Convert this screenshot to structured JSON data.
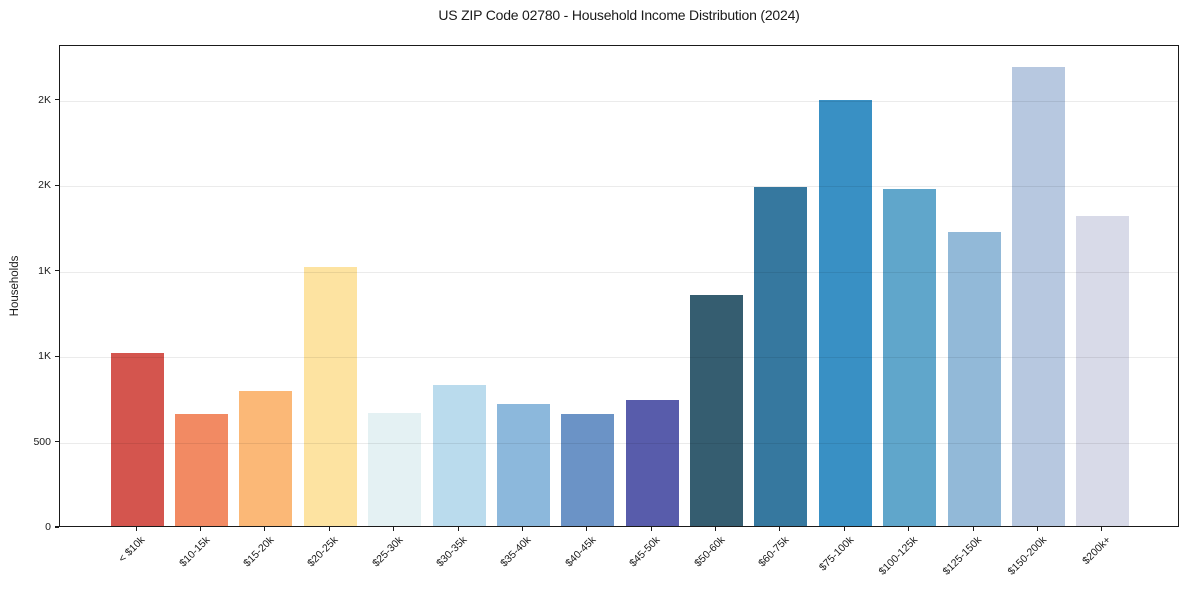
{
  "chart_data": {
    "type": "bar",
    "title": "US ZIP Code 02780 - Household Income Distribution (2024)",
    "xlabel": "",
    "ylabel": "Households",
    "categories": [
      "< $10k",
      "$10-15k",
      "$15-20k",
      "$20-25k",
      "$25-30k",
      "$30-35k",
      "$35-40k",
      "$40-45k",
      "$45-50k",
      "$50-60k",
      "$60-75k",
      "$75-100k",
      "$100-125k",
      "$125-150k",
      "$150-200k",
      "$200k+"
    ],
    "values": [
      1012,
      657,
      789,
      1515,
      661,
      823,
      716,
      655,
      737,
      1352,
      1982,
      2494,
      1970,
      1721,
      2684,
      1814
    ],
    "bar_colors": [
      "#d4554e",
      "#f28a63",
      "#fbb877",
      "#fde3a1",
      "#e4f1f3",
      "#badbed",
      "#8cb8dc",
      "#6b93c6",
      "#585cab",
      "#355d70",
      "#36789f",
      "#3990c4",
      "#60a6cb",
      "#92b9d8",
      "#b7c8e0",
      "#d8dae8"
    ],
    "ylim": [
      0,
      2821
    ],
    "yticks": {
      "values": [
        0,
        500,
        1000,
        1500,
        2000,
        2500
      ],
      "labels": [
        "0",
        "500",
        "1K",
        "1K",
        "2K",
        "2K"
      ]
    },
    "grid": "horizontal",
    "legend": "none",
    "colors": {
      "text": "#1a1a1a",
      "spine": "#1a1a1a",
      "grid": "#00000014",
      "background": "#ffffff"
    }
  }
}
